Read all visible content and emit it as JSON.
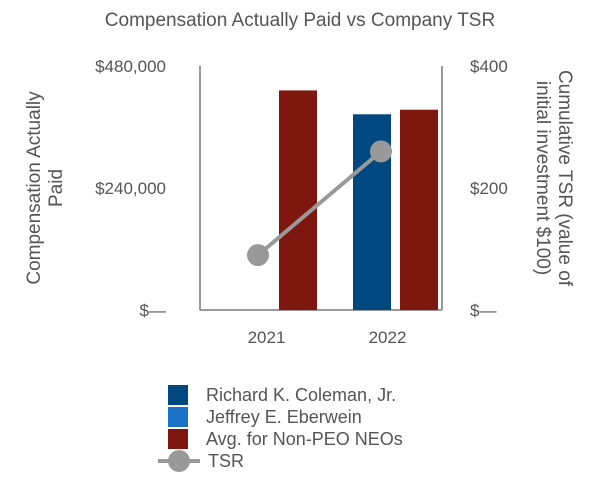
{
  "chart_data": {
    "type": "bar+line",
    "title": "Compensation Actually Paid vs Company TSR",
    "categories": [
      "2021",
      "2022"
    ],
    "y_left": {
      "label": "Compensation Actually Paid",
      "range": [
        0,
        480000
      ],
      "ticks": [
        0,
        240000,
        480000
      ],
      "tick_labels": [
        "$—",
        "$240,000",
        "$480,000"
      ]
    },
    "y_right": {
      "label": "Cumulative TSR (value of initial investment $100)",
      "range": [
        0,
        400
      ],
      "ticks": [
        0,
        200,
        400
      ],
      "tick_labels": [
        "$—",
        "$200",
        "$400"
      ]
    },
    "series": [
      {
        "name": "Richard K. Coleman, Jr.",
        "type": "bar",
        "axis": "left",
        "color": "#00487f",
        "values": [
          null,
          385000
        ]
      },
      {
        "name": "Jeffrey E. Eberwein",
        "type": "bar",
        "axis": "left",
        "color": "#1a73c9",
        "values": [
          null,
          null
        ]
      },
      {
        "name": "Avg. for Non-PEO NEOs",
        "type": "bar",
        "axis": "left",
        "color": "#7f1711",
        "values": [
          432000,
          394000
        ]
      },
      {
        "name": "TSR",
        "type": "line",
        "axis": "right",
        "color": "#999999",
        "values": [
          90,
          260
        ]
      }
    ],
    "grid": false,
    "legend_position": "bottom"
  }
}
